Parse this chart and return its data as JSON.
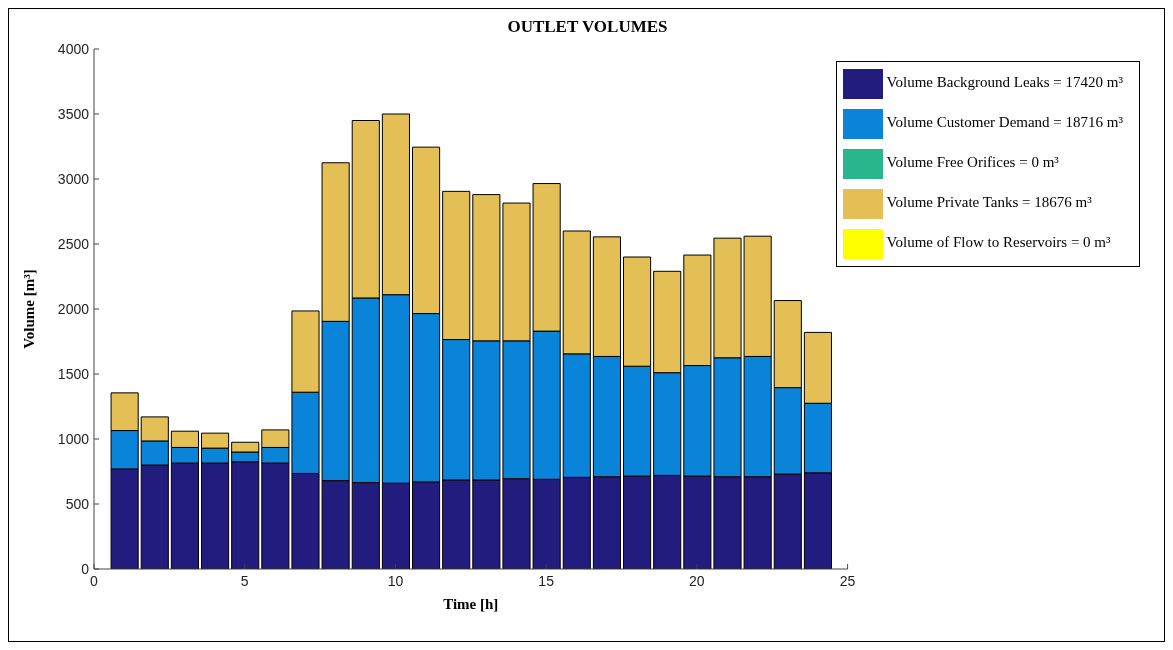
{
  "chart_data": {
    "type": "bar",
    "title": "OUTLET VOLUMES",
    "xlabel": "Time [h]",
    "ylabel": "Volume [m³]",
    "stacked": true,
    "x": [
      1,
      2,
      3,
      4,
      5,
      6,
      7,
      8,
      9,
      10,
      11,
      12,
      13,
      14,
      15,
      16,
      17,
      18,
      19,
      20,
      21,
      22,
      23,
      24
    ],
    "series": [
      {
        "name": "Volume Background Leaks = 17420 m³",
        "color": "#221c7e",
        "values": [
          770,
          800,
          815,
          815,
          825,
          815,
          735,
          680,
          665,
          660,
          670,
          685,
          685,
          695,
          690,
          705,
          710,
          715,
          720,
          715,
          710,
          710,
          730,
          740
        ]
      },
      {
        "name": "Volume Customer Demand = 18716 m³",
        "color": "#0a84d8",
        "values": [
          295,
          185,
          120,
          115,
          75,
          120,
          625,
          1225,
          1420,
          1450,
          1295,
          1080,
          1070,
          1060,
          1140,
          950,
          925,
          845,
          790,
          850,
          915,
          925,
          665,
          535
        ]
      },
      {
        "name": "Volume Free Orifices = 0 m³",
        "color": "#2ab68c",
        "values": [
          0,
          0,
          0,
          0,
          0,
          0,
          0,
          0,
          0,
          0,
          0,
          0,
          0,
          0,
          0,
          0,
          0,
          0,
          0,
          0,
          0,
          0,
          0,
          0
        ]
      },
      {
        "name": "Volume Private Tanks = 18676 m³",
        "color": "#e3bf55",
        "values": [
          290,
          185,
          125,
          115,
          75,
          135,
          625,
          1220,
          1365,
          1390,
          1280,
          1140,
          1125,
          1060,
          1135,
          945,
          920,
          840,
          780,
          850,
          920,
          925,
          670,
          545
        ]
      },
      {
        "name": "Volume of Flow to Reservoirs = 0 m³",
        "color": "#ffff00",
        "values": [
          0,
          0,
          0,
          0,
          0,
          0,
          0,
          0,
          0,
          0,
          0,
          0,
          0,
          0,
          0,
          0,
          0,
          0,
          0,
          0,
          0,
          0,
          0,
          0
        ]
      }
    ],
    "xlim": [
      0,
      25
    ],
    "xticks": [
      0,
      5,
      10,
      15,
      20,
      25
    ],
    "ylim": [
      0,
      4000
    ],
    "yticks": [
      0,
      500,
      1000,
      1500,
      2000,
      2500,
      3000,
      3500,
      4000
    ],
    "legend": "top right"
  }
}
